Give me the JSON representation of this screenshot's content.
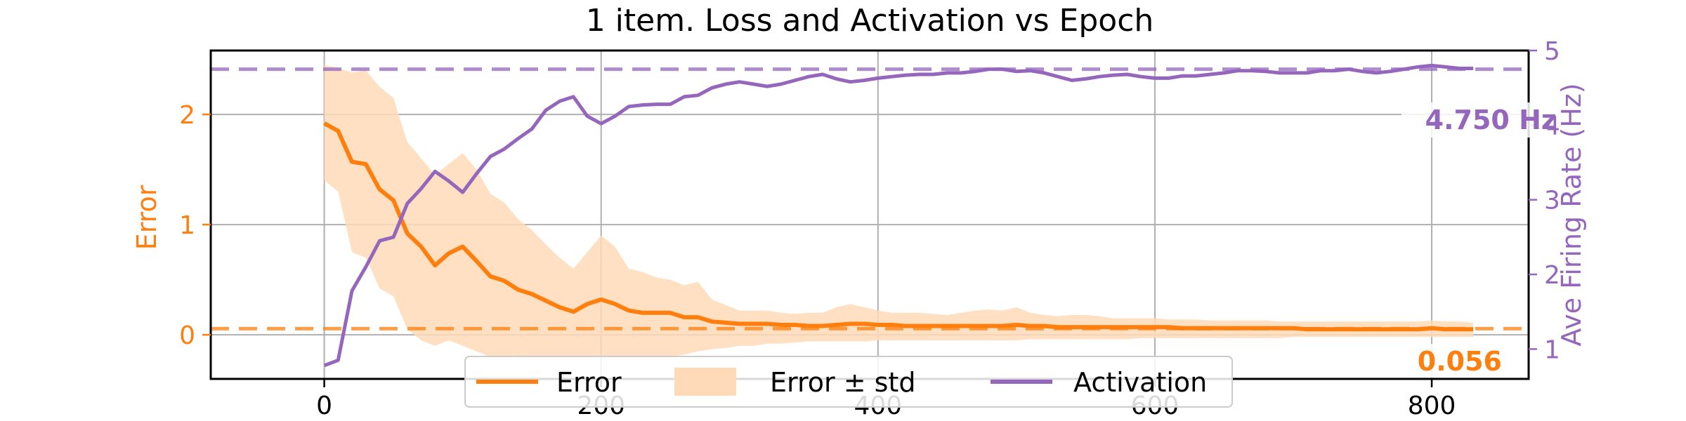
{
  "chart_data": {
    "type": "line",
    "title": "1 item. Loss and Activation vs Epoch",
    "xlabel": "",
    "ylabel_left": "Error",
    "ylabel_right": "Ave Firing Rate (Hz)",
    "xlim": [
      -82,
      870
    ],
    "ylim_left": [
      -0.4,
      2.58
    ],
    "ylim_right": [
      0.6,
      5.0
    ],
    "x_ticks": [
      0,
      200,
      400,
      600,
      800
    ],
    "y_ticks_left": [
      0,
      1,
      2
    ],
    "y_ticks_right": [
      1,
      2,
      3,
      4,
      5
    ],
    "grid": true,
    "legend_position": "bottom-center",
    "colors": {
      "error": "#ff7f0e",
      "error_band": "#ffdab8",
      "activation": "#9467bd",
      "grid": "#b0b0b0"
    },
    "reference_lines": {
      "error": 0.056,
      "activation": 4.75
    },
    "annotations": {
      "error_label": "0.056",
      "activation_label": "4.750 Hz"
    },
    "legend": [
      {
        "name": "Error",
        "style": "line",
        "color": "#ff7f0e"
      },
      {
        "name": "Error ± std",
        "style": "band",
        "color": "#ffdab8"
      },
      {
        "name": "Activation",
        "style": "line",
        "color": "#9467bd"
      }
    ],
    "x": [
      0,
      10,
      20,
      30,
      40,
      50,
      60,
      70,
      80,
      90,
      100,
      110,
      120,
      130,
      140,
      150,
      160,
      170,
      180,
      190,
      200,
      210,
      220,
      230,
      240,
      250,
      260,
      270,
      280,
      290,
      300,
      310,
      320,
      330,
      340,
      350,
      360,
      370,
      380,
      390,
      400,
      410,
      420,
      430,
      440,
      450,
      460,
      470,
      480,
      490,
      500,
      510,
      520,
      530,
      540,
      550,
      560,
      570,
      580,
      590,
      600,
      610,
      620,
      630,
      640,
      650,
      660,
      670,
      680,
      690,
      700,
      710,
      720,
      730,
      740,
      750,
      760,
      770,
      780,
      790,
      800,
      810,
      820,
      830
    ],
    "series": [
      {
        "name": "Error",
        "axis": "left",
        "values": [
          1.92,
          1.85,
          1.57,
          1.55,
          1.32,
          1.22,
          0.92,
          0.8,
          0.63,
          0.74,
          0.8,
          0.67,
          0.53,
          0.49,
          0.41,
          0.37,
          0.31,
          0.25,
          0.21,
          0.28,
          0.32,
          0.28,
          0.22,
          0.2,
          0.2,
          0.2,
          0.16,
          0.16,
          0.12,
          0.11,
          0.1,
          0.1,
          0.1,
          0.09,
          0.09,
          0.08,
          0.08,
          0.09,
          0.1,
          0.1,
          0.09,
          0.09,
          0.08,
          0.08,
          0.08,
          0.08,
          0.08,
          0.08,
          0.08,
          0.08,
          0.09,
          0.08,
          0.08,
          0.07,
          0.07,
          0.07,
          0.07,
          0.07,
          0.07,
          0.07,
          0.07,
          0.07,
          0.06,
          0.06,
          0.06,
          0.06,
          0.06,
          0.06,
          0.06,
          0.06,
          0.06,
          0.05,
          0.05,
          0.05,
          0.05,
          0.05,
          0.05,
          0.05,
          0.05,
          0.05,
          0.06,
          0.05,
          0.05,
          0.05
        ],
        "lower": [
          1.4,
          1.3,
          0.75,
          0.7,
          0.42,
          0.35,
          0.05,
          -0.05,
          -0.1,
          -0.05,
          -0.1,
          -0.15,
          -0.2,
          -0.2,
          -0.22,
          -0.2,
          -0.2,
          -0.2,
          -0.2,
          -0.2,
          -0.2,
          -0.2,
          -0.2,
          -0.2,
          -0.2,
          -0.2,
          -0.18,
          -0.15,
          -0.13,
          -0.12,
          -0.1,
          -0.1,
          -0.08,
          -0.08,
          -0.07,
          -0.06,
          -0.06,
          -0.06,
          -0.06,
          -0.06,
          -0.05,
          -0.05,
          -0.05,
          -0.05,
          -0.05,
          -0.05,
          -0.05,
          -0.05,
          -0.05,
          -0.05,
          -0.05,
          -0.04,
          -0.04,
          -0.04,
          -0.04,
          -0.04,
          -0.04,
          -0.04,
          -0.04,
          -0.03,
          -0.03,
          -0.03,
          -0.03,
          -0.03,
          -0.03,
          -0.03,
          -0.03,
          -0.03,
          -0.03,
          -0.03,
          -0.02,
          -0.02,
          -0.02,
          -0.02,
          -0.02,
          -0.02,
          -0.02,
          -0.02,
          -0.02,
          -0.02,
          -0.02,
          -0.02,
          -0.02,
          -0.02
        ],
        "upper": [
          2.45,
          2.42,
          2.38,
          2.4,
          2.25,
          2.15,
          1.75,
          1.6,
          1.45,
          1.55,
          1.65,
          1.5,
          1.28,
          1.2,
          1.05,
          0.95,
          0.82,
          0.7,
          0.6,
          0.75,
          0.9,
          0.8,
          0.6,
          0.57,
          0.52,
          0.5,
          0.45,
          0.48,
          0.32,
          0.27,
          0.22,
          0.22,
          0.22,
          0.2,
          0.19,
          0.2,
          0.2,
          0.25,
          0.28,
          0.25,
          0.22,
          0.2,
          0.2,
          0.2,
          0.19,
          0.18,
          0.2,
          0.22,
          0.23,
          0.22,
          0.25,
          0.2,
          0.18,
          0.17,
          0.18,
          0.18,
          0.17,
          0.15,
          0.15,
          0.15,
          0.15,
          0.14,
          0.14,
          0.14,
          0.13,
          0.13,
          0.13,
          0.13,
          0.13,
          0.12,
          0.12,
          0.12,
          0.12,
          0.12,
          0.12,
          0.12,
          0.12,
          0.12,
          0.12,
          0.12,
          0.13,
          0.12,
          0.12,
          0.11
        ]
      },
      {
        "name": "Activation",
        "axis": "right",
        "values": [
          0.78,
          0.85,
          1.78,
          2.1,
          2.45,
          2.5,
          2.95,
          3.15,
          3.38,
          3.25,
          3.1,
          3.35,
          3.58,
          3.68,
          3.82,
          3.95,
          4.2,
          4.32,
          4.38,
          4.12,
          4.02,
          4.12,
          4.25,
          4.27,
          4.28,
          4.28,
          4.38,
          4.4,
          4.5,
          4.55,
          4.58,
          4.55,
          4.52,
          4.55,
          4.6,
          4.65,
          4.68,
          4.62,
          4.58,
          4.6,
          4.63,
          4.65,
          4.67,
          4.68,
          4.68,
          4.7,
          4.7,
          4.72,
          4.75,
          4.75,
          4.72,
          4.73,
          4.7,
          4.65,
          4.6,
          4.62,
          4.65,
          4.67,
          4.68,
          4.65,
          4.63,
          4.63,
          4.66,
          4.66,
          4.68,
          4.7,
          4.73,
          4.73,
          4.72,
          4.7,
          4.7,
          4.7,
          4.73,
          4.73,
          4.75,
          4.72,
          4.7,
          4.72,
          4.75,
          4.78,
          4.8,
          4.78,
          4.76,
          4.76
        ]
      }
    ]
  }
}
